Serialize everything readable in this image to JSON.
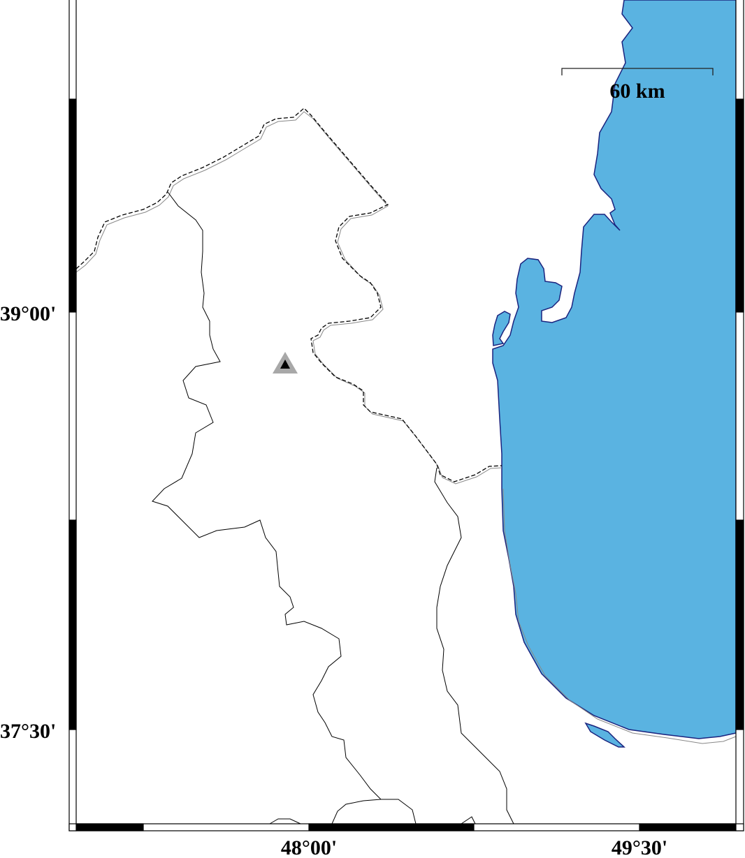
{
  "map": {
    "colors": {
      "sea": "#5ab3e1",
      "coastline": "#1a237e",
      "land": "#ffffff",
      "border": "#000000",
      "station_outer": "#a8a8a8",
      "station_inner": "#000000"
    },
    "lat_labels": [
      "39°00'",
      "37°30'"
    ],
    "lon_labels": [
      "48°00'",
      "49°30'"
    ],
    "scale_bar": {
      "label": "60 km",
      "length_km": 60
    },
    "frame_style": "fancy checkered",
    "features": [
      "sea",
      "coastline",
      "international-border-dashed",
      "provincial-boundaries",
      "station-triangle"
    ]
  }
}
